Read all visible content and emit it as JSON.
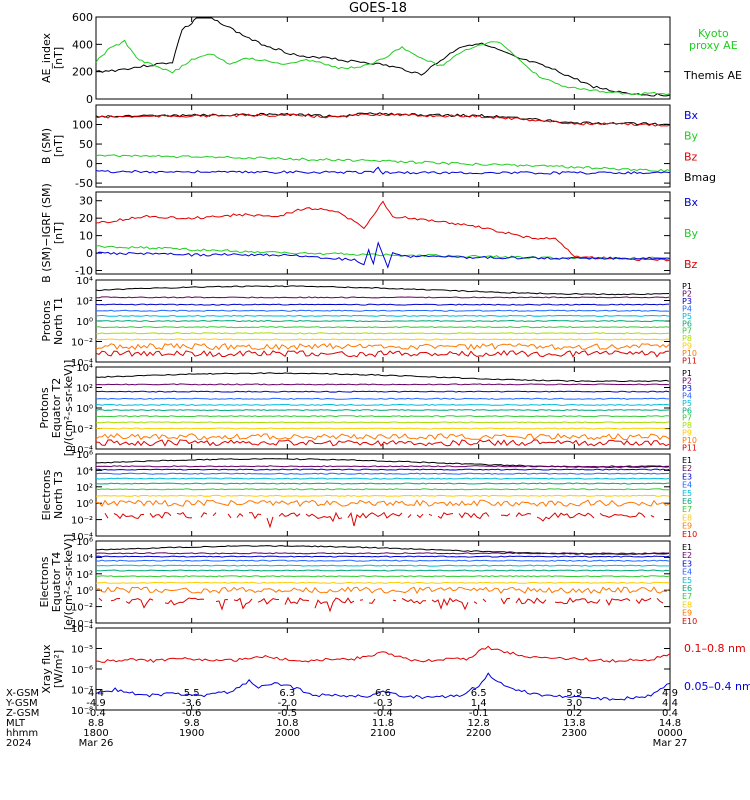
{
  "title": "GOES-18",
  "colors": {
    "black": "#000000",
    "red": "#e00000",
    "green": "#22cc22",
    "blue": "#0000dd"
  },
  "bottom_axis": {
    "rows": [
      {
        "label": "X-GSM",
        "values": [
          "4.4",
          "5.5",
          "6.3",
          "6.6",
          "6.5",
          "5.9",
          "4.9"
        ]
      },
      {
        "label": "Y-GSM",
        "values": [
          "-4.9",
          "-3.6",
          "-2.0",
          "-0.3",
          "1.4",
          "3.0",
          "4.4"
        ]
      },
      {
        "label": "Z-GSM",
        "values": [
          "-0.4",
          "-0.6",
          "-0.5",
          "-0.4",
          "-0.1",
          "0.2",
          "0.4"
        ]
      },
      {
        "label": "MLT",
        "values": [
          "8.8",
          "9.8",
          "10.8",
          "11.8",
          "12.8",
          "13.8",
          "14.8"
        ]
      },
      {
        "label": "hhmm",
        "values": [
          "1800",
          "1900",
          "2000",
          "2100",
          "2200",
          "2300",
          "0000"
        ]
      },
      {
        "label": "2024",
        "values": [
          "Mar 26",
          "",
          "",
          "",
          "",
          "",
          "Mar 27"
        ]
      }
    ]
  },
  "chart_data": [
    {
      "type": "line",
      "ylabel": [
        "AE_index",
        "[nT]"
      ],
      "ylim": [
        0,
        600
      ],
      "ticks": [
        {
          "v": 600,
          "t": "600"
        },
        {
          "v": 400,
          "t": "400"
        },
        {
          "v": 200,
          "t": "200"
        },
        {
          "v": 0,
          "t": "0"
        }
      ],
      "legend": [
        {
          "name": "Kyoto\nproxy AE",
          "color": "#22cc22"
        },
        {
          "name": "Themis AE",
          "color": "#000000"
        }
      ],
      "series": [
        {
          "name": "Themis AE",
          "color": "#000000",
          "x": [
            0,
            0.2,
            0.4,
            0.6,
            0.8,
            0.9,
            1.0,
            1.05,
            1.15,
            1.3,
            1.5,
            1.7,
            2.0,
            2.2,
            2.4,
            2.6,
            2.8,
            3.0,
            3.2,
            3.4,
            3.6,
            3.8,
            4.0,
            4.2,
            4.4,
            4.6,
            4.8,
            5.0,
            5.2,
            5.4,
            5.6,
            5.8,
            6.0
          ],
          "y": [
            200,
            210,
            230,
            250,
            270,
            510,
            550,
            610,
            600,
            560,
            480,
            410,
            340,
            300,
            310,
            280,
            270,
            250,
            220,
            180,
            280,
            380,
            410,
            360,
            300,
            260,
            210,
            150,
            90,
            60,
            40,
            30,
            30
          ]
        },
        {
          "name": "Kyoto proxy AE",
          "color": "#22cc22",
          "x": [
            0,
            0.15,
            0.3,
            0.45,
            0.6,
            0.8,
            1.0,
            1.2,
            1.4,
            1.6,
            1.8,
            2.0,
            2.2,
            2.4,
            2.6,
            2.8,
            3.0,
            3.2,
            3.4,
            3.6,
            3.8,
            4.0,
            4.2,
            4.4,
            4.6,
            4.8,
            5.0,
            5.2,
            5.4,
            5.6,
            5.8,
            6.0
          ],
          "y": [
            270,
            380,
            420,
            280,
            250,
            190,
            290,
            330,
            260,
            300,
            280,
            250,
            290,
            250,
            220,
            240,
            290,
            380,
            300,
            240,
            330,
            400,
            420,
            300,
            180,
            110,
            80,
            60,
            50,
            40,
            40,
            40
          ]
        }
      ]
    },
    {
      "type": "line",
      "ylabel": [
        "B (SM)",
        "[nT]"
      ],
      "ylim": [
        -60,
        150
      ],
      "ticks": [
        {
          "v": 100,
          "t": "100"
        },
        {
          "v": 50,
          "t": "50"
        },
        {
          "v": 0,
          "t": "0"
        },
        {
          "v": -50,
          "t": "-50"
        }
      ],
      "legend": [
        {
          "name": "Bx",
          "color": "#0000dd"
        },
        {
          "name": "By",
          "color": "#22cc22"
        },
        {
          "name": "Bz",
          "color": "#e00000"
        },
        {
          "name": "Bmag",
          "color": "#000000"
        }
      ],
      "series": [
        {
          "name": "Bmag",
          "color": "#000000",
          "x": [
            0,
            1.0,
            2.0,
            2.5,
            2.8,
            3.0,
            3.3,
            4.0,
            4.5,
            5.0,
            5.5,
            6.0
          ],
          "y": [
            121,
            124,
            126,
            121,
            127,
            128,
            125,
            123,
            115,
            104,
            103,
            100
          ]
        },
        {
          "name": "Bz",
          "color": "#e00000",
          "x": [
            0,
            1.0,
            2.0,
            2.5,
            2.8,
            3.0,
            3.3,
            4.0,
            4.5,
            5.0,
            5.5,
            6.0
          ],
          "y": [
            119,
            122,
            124,
            119,
            125,
            126,
            123,
            121,
            113,
            102,
            101,
            98
          ]
        },
        {
          "name": "By",
          "color": "#22cc22",
          "x": [
            0,
            1.5,
            3.0,
            4.5,
            6.0
          ],
          "y": [
            22,
            15,
            6,
            -5,
            -18
          ]
        },
        {
          "name": "Bx",
          "color": "#0000dd",
          "x": [
            0,
            1.5,
            2.9,
            2.95,
            3.0,
            3.05,
            3.1,
            4.5,
            6.0
          ],
          "y": [
            -20,
            -22,
            -22,
            -10,
            -25,
            -22,
            -23,
            -24,
            -23
          ]
        }
      ]
    },
    {
      "type": "line",
      "ylabel": [
        "B (SM)−IGRF (SM)",
        "[nT]"
      ],
      "ylim": [
        -12,
        35
      ],
      "ticks": [
        {
          "v": 30,
          "t": "30"
        },
        {
          "v": 20,
          "t": "20"
        },
        {
          "v": 10,
          "t": "10"
        },
        {
          "v": 0,
          "t": "0"
        },
        {
          "v": -10,
          "t": "-10"
        }
      ],
      "legend": [
        {
          "name": "Bx",
          "color": "#0000dd"
        },
        {
          "name": "By",
          "color": "#22cc22"
        },
        {
          "name": "Bz",
          "color": "#e00000"
        }
      ],
      "series": [
        {
          "name": "Bz",
          "color": "#e00000",
          "x": [
            0,
            0.5,
            1.0,
            1.5,
            1.9,
            2.2,
            2.5,
            2.7,
            2.8,
            2.9,
            3.0,
            3.1,
            3.3,
            3.6,
            4.0,
            4.5,
            4.8,
            5.0,
            5.4,
            5.8,
            6.0
          ],
          "y": [
            17,
            21,
            20,
            22,
            21,
            26,
            24,
            18,
            14,
            22,
            29,
            21,
            20,
            18,
            15,
            9,
            8,
            -2,
            -3,
            -4,
            -4
          ]
        },
        {
          "name": "By",
          "color": "#22cc22",
          "x": [
            0,
            1.0,
            2.0,
            3.0,
            4.0,
            5.0,
            6.0
          ],
          "y": [
            4,
            2,
            0,
            -1,
            -2,
            -3,
            -3
          ]
        },
        {
          "name": "Bx",
          "color": "#0000dd",
          "x": [
            0,
            1.0,
            2.0,
            2.7,
            2.8,
            2.85,
            2.9,
            2.95,
            3.0,
            3.05,
            3.1,
            3.2,
            3.5,
            4.5,
            6.0
          ],
          "y": [
            0,
            -1,
            -1,
            -4,
            -7,
            2,
            -6,
            6,
            -1,
            -8,
            0,
            -2,
            -2,
            -3,
            -3
          ]
        }
      ]
    },
    {
      "type": "log-bands",
      "ylabel": [
        "Protons",
        "North T1"
      ],
      "decades": [
        -4,
        4
      ],
      "ticks": [
        "10⁻⁴",
        "10⁻²",
        "10⁰",
        "10²",
        "10⁴"
      ],
      "legend": [
        "P1",
        "P2",
        "P3",
        "P4",
        "P5",
        "P6",
        "P7",
        "P8",
        "P9",
        "P10",
        "P11"
      ],
      "colors": [
        "#000000",
        "#660066",
        "#0000cc",
        "#2266ff",
        "#00bbdd",
        "#00aa77",
        "#33cc33",
        "#aadd00",
        "#ffcc00",
        "#ff7700",
        "#dd0000"
      ],
      "levels": [
        3.0,
        2.3,
        1.6,
        1.0,
        0.5,
        0.0,
        -0.6,
        -1.2,
        -1.8,
        -2.5,
        -3.2
      ]
    },
    {
      "type": "log-bands",
      "ylabel": [
        "Protons",
        "Equator T2",
        "[p/(cm²-s-sr-keV)]"
      ],
      "decades": [
        -4,
        4
      ],
      "ticks": [
        "10⁻⁴",
        "10⁻²",
        "10⁰",
        "10²",
        "10⁴"
      ],
      "legend": [
        "P1",
        "P2",
        "P3",
        "P4",
        "P5",
        "P6",
        "P7",
        "P8",
        "P9",
        "P10",
        "P11"
      ],
      "colors": [
        "#000000",
        "#660066",
        "#0000cc",
        "#2266ff",
        "#00bbdd",
        "#00aa77",
        "#33cc33",
        "#aadd00",
        "#ffcc00",
        "#ff7700",
        "#dd0000"
      ],
      "levels": [
        3.0,
        2.3,
        1.6,
        0.9,
        0.3,
        -0.2,
        -0.8,
        -1.4,
        -2.0,
        -2.8,
        -3.4
      ]
    },
    {
      "type": "log-bands",
      "ylabel": [
        "Electrons",
        "North T3"
      ],
      "decades": [
        -4,
        6
      ],
      "ticks": [
        "10⁻⁴",
        "10⁻²",
        "10⁰",
        "10²",
        "10⁴",
        "10⁶"
      ],
      "legend": [
        "E1",
        "E2",
        "E3",
        "E4",
        "E5",
        "E6",
        "E7",
        "E8",
        "E9",
        "E10"
      ],
      "colors": [
        "#000000",
        "#660066",
        "#0000cc",
        "#2266ff",
        "#00bbdd",
        "#00aa77",
        "#33cc33",
        "#ffcc00",
        "#ff7700",
        "#dd0000"
      ],
      "levels": [
        4.9,
        4.5,
        4.1,
        3.6,
        3.0,
        2.4,
        1.7,
        0.9,
        0.0,
        -1.5
      ]
    },
    {
      "type": "log-bands",
      "ylabel": [
        "Electrons",
        "Equator T4",
        "[e/(cm²-s-sr-keV)]"
      ],
      "decades": [
        -4,
        6
      ],
      "ticks": [
        "10⁻⁴",
        "10⁻²",
        "10⁰",
        "10²",
        "10⁴",
        "10⁶"
      ],
      "legend": [
        "E1",
        "E2",
        "E3",
        "E4",
        "E5",
        "E6",
        "E7",
        "E8",
        "E9",
        "E10"
      ],
      "colors": [
        "#000000",
        "#660066",
        "#0000cc",
        "#2266ff",
        "#00bbdd",
        "#00aa77",
        "#33cc33",
        "#ffcc00",
        "#ff7700",
        "#dd0000"
      ],
      "levels": [
        4.9,
        4.5,
        4.1,
        3.6,
        3.0,
        2.4,
        1.7,
        0.9,
        0.0,
        -1.3
      ]
    },
    {
      "type": "line-log",
      "ylabel": [
        "Xray flux",
        "[W/m²]"
      ],
      "decades": [
        -8,
        -4
      ],
      "ticks": [
        "10⁻⁸",
        "10⁻⁷",
        "10⁻⁶",
        "10⁻⁵",
        "10⁻⁴"
      ],
      "legend": [
        {
          "name": "0.1–0.8 nm",
          "color": "#e00000"
        },
        {
          "name": "0.05–0.4 nm",
          "color": "#0000dd"
        }
      ],
      "series": [
        {
          "name": "0.1–0.8 nm",
          "color": "#e00000",
          "x": [
            0,
            0.3,
            0.6,
            0.9,
            1.2,
            1.5,
            1.8,
            2.1,
            2.4,
            2.7,
            3.0,
            3.3,
            3.6,
            3.9,
            4.0,
            4.1,
            4.3,
            4.6,
            5.0,
            5.4,
            5.8,
            6.0
          ],
          "y": [
            -5.65,
            -5.55,
            -5.6,
            -5.5,
            -5.6,
            -5.55,
            -5.4,
            -5.6,
            -5.55,
            -5.5,
            -5.2,
            -5.6,
            -5.55,
            -5.5,
            -5.1,
            -4.95,
            -5.2,
            -5.45,
            -5.5,
            -5.6,
            -5.55,
            -5.25
          ]
        },
        {
          "name": "0.05–0.4 nm",
          "color": "#0000dd",
          "x": [
            0,
            0.2,
            0.5,
            0.8,
            1.1,
            1.4,
            1.6,
            1.7,
            1.9,
            2.1,
            2.3,
            2.5,
            2.8,
            3.0,
            3.2,
            3.5,
            3.8,
            4.0,
            4.1,
            4.3,
            4.6,
            5.0,
            5.4,
            5.8,
            6.0
          ],
          "y": [
            -7.2,
            -7.0,
            -7.3,
            -7.2,
            -7.3,
            -7.1,
            -6.6,
            -6.9,
            -6.7,
            -6.95,
            -7.3,
            -7.25,
            -7.35,
            -7.1,
            -7.3,
            -7.4,
            -7.3,
            -6.8,
            -6.25,
            -6.9,
            -7.25,
            -7.35,
            -7.5,
            -7.3,
            -6.7
          ]
        }
      ]
    }
  ]
}
